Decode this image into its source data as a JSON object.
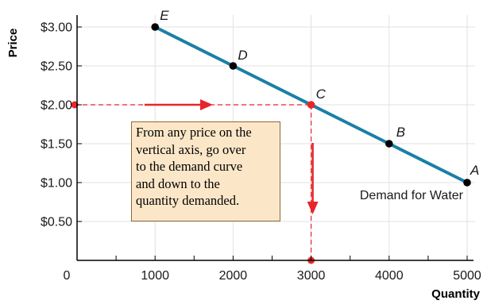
{
  "chart_data": {
    "type": "line",
    "title": "",
    "xlabel": "Quantity",
    "ylabel": "Price",
    "xlim": [
      0,
      5000
    ],
    "ylim": [
      0,
      3.0
    ],
    "x_ticks": [
      0,
      1000,
      2000,
      3000,
      4000,
      5000
    ],
    "x_tick_labels": [
      "0",
      "1000",
      "2000",
      "3000",
      "4000",
      "5000"
    ],
    "y_ticks": [
      0.5,
      1.0,
      1.5,
      2.0,
      2.5,
      3.0
    ],
    "y_tick_labels": [
      "$0.50",
      "$1.00",
      "$1.50",
      "$2.00",
      "$2.50",
      "$3.00"
    ],
    "grid": true,
    "series": [
      {
        "name": "Demand for Water",
        "color": "#1b7fa6",
        "points": [
          {
            "label": "E",
            "x": 1000,
            "y": 3.0
          },
          {
            "label": "D",
            "x": 2000,
            "y": 2.5
          },
          {
            "label": "C",
            "x": 3000,
            "y": 2.0
          },
          {
            "label": "B",
            "x": 4000,
            "y": 1.5
          },
          {
            "label": "A",
            "x": 5000,
            "y": 1.0
          }
        ]
      }
    ],
    "highlight": {
      "label": "C",
      "price": 2.0,
      "quantity": 3000,
      "color": "#e8252a"
    },
    "annotation": {
      "lines": [
        "From any price on the",
        "vertical axis, go over",
        "to the demand curve",
        "and down to the",
        "quantity demanded."
      ],
      "background": "#fbe7c8"
    }
  }
}
